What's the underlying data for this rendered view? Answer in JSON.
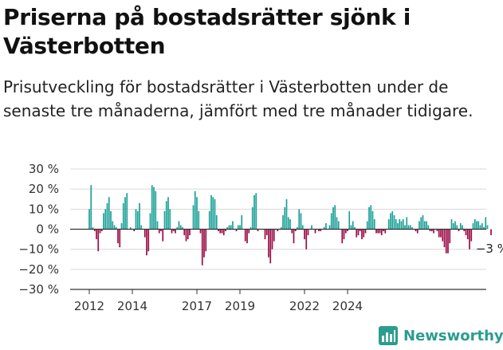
{
  "header": {
    "title": "Priserna på bostadsrätter sjönk i Västerbotten",
    "subtitle": "Prisutveckling för bostadsrätter i Västerbotten under de senaste tre månaderna, jämfört med tre månader tidigare."
  },
  "brand": {
    "name": "Newsworthy",
    "icon": "newsworthy-logo-icon",
    "color": "#2a9d8f"
  },
  "colors": {
    "positive": "#1aa198",
    "negative": "#9b0b45",
    "axis": "#333333",
    "grid": "#d9d9d9"
  },
  "chart_data": {
    "type": "bar",
    "title": "Priserna på bostadsrätter sjönk i Västerbotten",
    "xlabel": "",
    "ylabel": "",
    "ylim": [
      -30,
      30
    ],
    "yticks": [
      "30 %",
      "20 %",
      "10 %",
      "0 %",
      "−10 %",
      "−20 %",
      "−30 %"
    ],
    "ytick_values": [
      30,
      20,
      10,
      0,
      -10,
      -20,
      -30
    ],
    "xticks": [
      "2012",
      "2014",
      "2017",
      "2019",
      "2022",
      "2024"
    ],
    "xtick_positions": [
      2012,
      2014,
      2017,
      2019,
      2022,
      2024
    ],
    "grid": true,
    "start_year": 2012,
    "months_per_bar": 1,
    "annotation": {
      "text": "−3 %",
      "target": "last"
    },
    "values": [
      10,
      22,
      1,
      -1,
      -5,
      -11,
      -2,
      -1,
      8,
      10,
      13,
      16,
      9,
      4,
      2,
      1,
      -7,
      -9,
      3,
      13,
      16,
      18,
      0,
      1,
      0,
      -1,
      10,
      9,
      13,
      2,
      0,
      -4,
      -13,
      -11,
      8,
      22,
      21,
      19,
      4,
      -2,
      -1,
      -6,
      9,
      14,
      16,
      10,
      -2,
      -1,
      -2,
      1,
      4,
      2,
      1,
      -3,
      -6,
      -5,
      -3,
      0,
      12,
      19,
      16,
      9,
      -2,
      -18,
      -14,
      -11,
      0,
      9,
      17,
      16,
      15,
      7,
      -1,
      -2,
      -2,
      -3,
      -1,
      1,
      2,
      2,
      4,
      0,
      -1,
      2,
      2,
      7,
      0,
      -6,
      -7,
      -2,
      1,
      11,
      17,
      18,
      -1,
      0,
      0,
      0,
      -5,
      -3,
      -14,
      -17,
      -10,
      -6,
      0,
      -1,
      0,
      1,
      7,
      11,
      15,
      6,
      5,
      -2,
      -7,
      -1,
      1,
      10,
      8,
      2,
      -5,
      -10,
      -3,
      0,
      2,
      0,
      -2,
      0,
      -1,
      -1,
      0,
      1,
      3,
      0,
      2,
      8,
      11,
      12,
      6,
      4,
      0,
      -7,
      -5,
      -2,
      -1,
      9,
      2,
      4,
      1,
      -4,
      -3,
      -1,
      -5,
      -4,
      -2,
      4,
      11,
      12,
      9,
      5,
      -2,
      -2,
      -2,
      -3,
      -1,
      -2,
      0,
      5,
      8,
      9,
      7,
      5,
      3,
      5,
      4,
      5,
      2,
      6,
      2,
      2,
      1,
      0,
      -1,
      -2,
      4,
      6,
      7,
      4,
      4,
      2,
      -1,
      -1,
      -2,
      0,
      -1,
      -4,
      -4,
      -6,
      -9,
      -12,
      -12,
      -7,
      5,
      3,
      4,
      2,
      -1,
      3,
      2,
      -1,
      -3,
      -5,
      -10,
      -6,
      3,
      5,
      4,
      4,
      2,
      3,
      1,
      6,
      2,
      0,
      -3
    ]
  }
}
